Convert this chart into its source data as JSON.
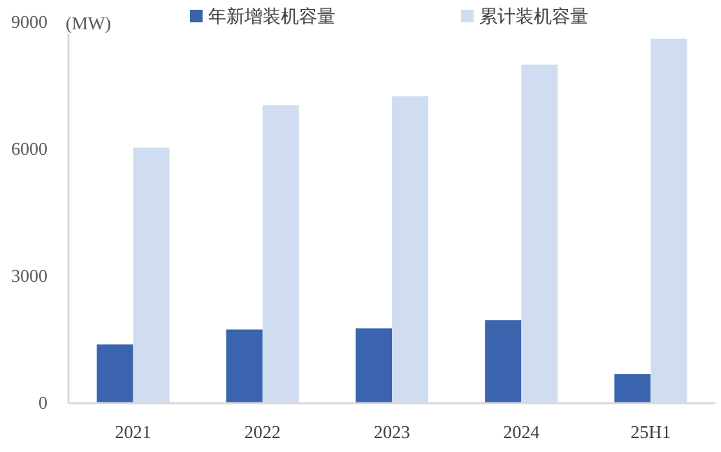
{
  "chart_data": {
    "type": "bar",
    "ylabel": "(MW)",
    "categories": [
      "2021",
      "2022",
      "2023",
      "2024",
      "25H1"
    ],
    "series": [
      {
        "name": "年新增装机容量",
        "color": "#3a64ae",
        "values": [
          1390,
          1740,
          1770,
          1960,
          690
        ]
      },
      {
        "name": "累计装机容量",
        "color": "#d0ddf0",
        "values": [
          6040,
          7040,
          7250,
          8000,
          8610
        ]
      }
    ],
    "ylim": [
      0,
      9000
    ],
    "yticks": [
      0,
      3000,
      6000,
      9000
    ],
    "grid": false,
    "legend": "top"
  }
}
